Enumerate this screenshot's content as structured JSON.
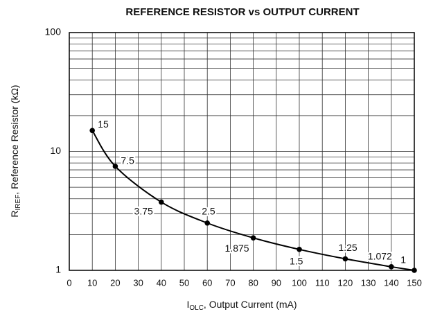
{
  "chart_data": {
    "type": "line",
    "title": "REFERENCE RESISTOR vs OUTPUT CURRENT",
    "x_label": [
      "I",
      "OLC",
      ", Output Current (mA)"
    ],
    "y_label": [
      "R",
      "IREF",
      ", Reference Resistor (kΩ)"
    ],
    "x": [
      10,
      20,
      40,
      60,
      80,
      100,
      120,
      140,
      150
    ],
    "series": [
      {
        "color": "#000000",
        "values": [
          15,
          7.5,
          3.75,
          2.5,
          1.875,
          1.5,
          1.25,
          1.072,
          1
        ]
      }
    ],
    "xlim": [
      0,
      150
    ],
    "xticks": [
      0,
      10,
      20,
      30,
      40,
      50,
      60,
      70,
      80,
      90,
      100,
      110,
      120,
      130,
      140,
      150
    ],
    "ylim": [
      1,
      100
    ],
    "yticks": [
      1,
      10,
      100
    ],
    "y_log": true,
    "y_minor_ticks": [
      2,
      3,
      4,
      5,
      6,
      7,
      8,
      9,
      20,
      30,
      40,
      50,
      60,
      70,
      80,
      90
    ],
    "grid": true
  }
}
